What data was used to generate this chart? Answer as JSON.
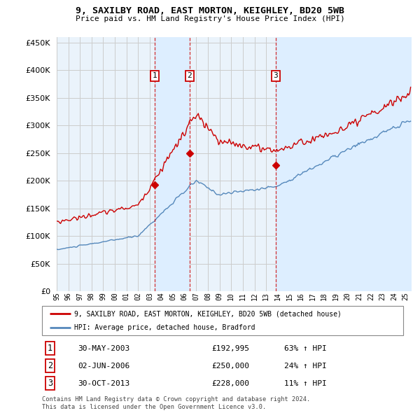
{
  "title": "9, SAXILBY ROAD, EAST MORTON, KEIGHLEY, BD20 5WB",
  "subtitle": "Price paid vs. HM Land Registry's House Price Index (HPI)",
  "ylim": [
    0,
    460000
  ],
  "yticks": [
    0,
    50000,
    100000,
    150000,
    200000,
    250000,
    300000,
    350000,
    400000,
    450000
  ],
  "xlim_start": 1995.0,
  "xlim_end": 2025.5,
  "sale_dates": [
    2003.41,
    2006.42,
    2013.83
  ],
  "sale_prices": [
    192995,
    250000,
    228000
  ],
  "sale_labels": [
    "1",
    "2",
    "3"
  ],
  "sale_date_strs": [
    "30-MAY-2003",
    "02-JUN-2006",
    "30-OCT-2013"
  ],
  "sale_price_strs": [
    "£192,995",
    "£250,000",
    "£228,000"
  ],
  "sale_pct_strs": [
    "63% ↑ HPI",
    "24% ↑ HPI",
    "11% ↑ HPI"
  ],
  "red_color": "#cc0000",
  "blue_color": "#5588bb",
  "shade_color": "#ddeeff",
  "chart_bg": "#eaf3fb",
  "legend_line1": "9, SAXILBY ROAD, EAST MORTON, KEIGHLEY, BD20 5WB (detached house)",
  "legend_line2": "HPI: Average price, detached house, Bradford",
  "footnote1": "Contains HM Land Registry data © Crown copyright and database right 2024.",
  "footnote2": "This data is licensed under the Open Government Licence v3.0.",
  "background_color": "#ffffff",
  "grid_color": "#cccccc"
}
